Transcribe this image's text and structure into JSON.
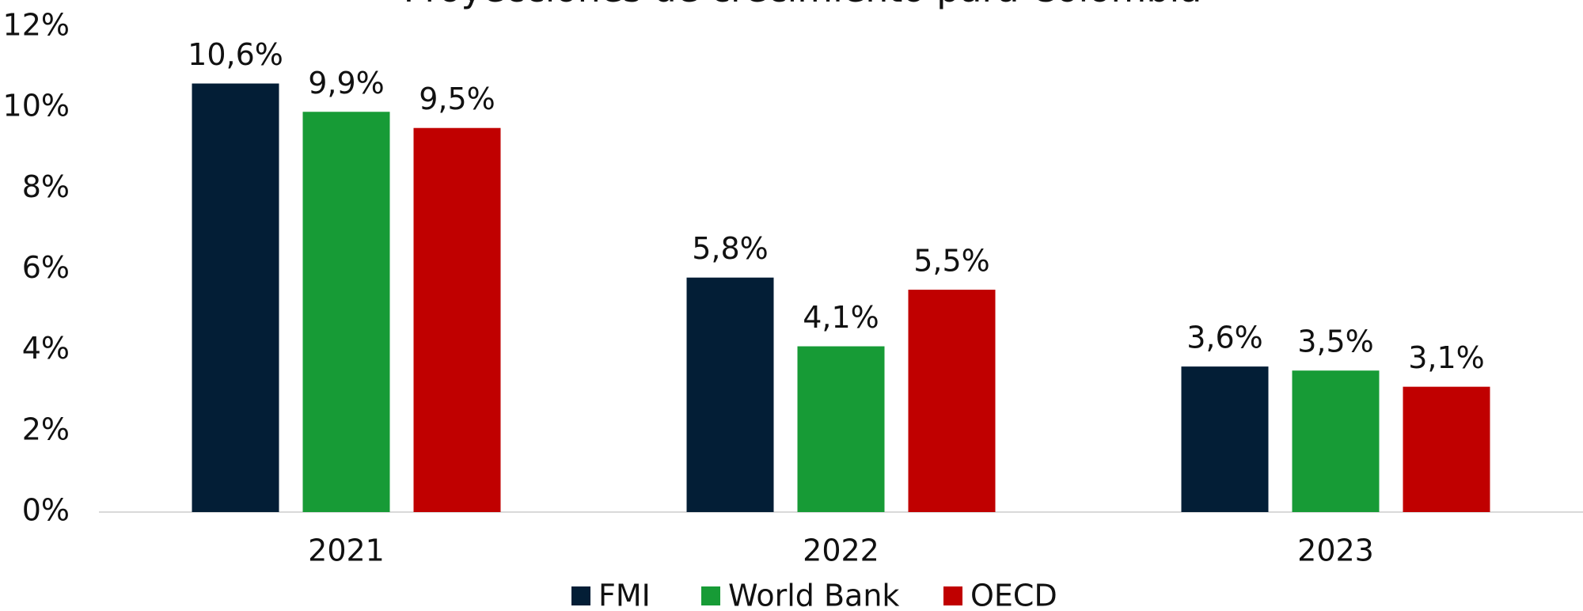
{
  "chart_data": {
    "type": "bar",
    "title": "Proyecciones de crecimiento para Colombia",
    "categories": [
      "2021",
      "2022",
      "2023"
    ],
    "series": [
      {
        "name": "FMI",
        "color": "#031e36",
        "values": [
          10.6,
          5.8,
          3.6
        ],
        "value_labels": [
          "10,6%",
          "5,8%",
          "3,6%"
        ]
      },
      {
        "name": "World Bank",
        "color": "#179b36",
        "values": [
          9.9,
          4.1,
          3.5
        ],
        "value_labels": [
          "9,9%",
          "4,1%",
          "3,5%"
        ]
      },
      {
        "name": "OECD",
        "color": "#c00000",
        "values": [
          9.5,
          5.5,
          3.1
        ],
        "value_labels": [
          "9,5%",
          "5,5%",
          "3,1%"
        ]
      }
    ],
    "ylim": [
      0,
      12
    ],
    "yticks": [
      {
        "value": 0,
        "label": "0%"
      },
      {
        "value": 2,
        "label": "2%"
      },
      {
        "value": 4,
        "label": "4%"
      },
      {
        "value": 6,
        "label": "6%"
      },
      {
        "value": 8,
        "label": "8%"
      },
      {
        "value": 10,
        "label": "10%"
      },
      {
        "value": 12,
        "label": "12%"
      }
    ],
    "grid": false,
    "legend": "bottom"
  }
}
